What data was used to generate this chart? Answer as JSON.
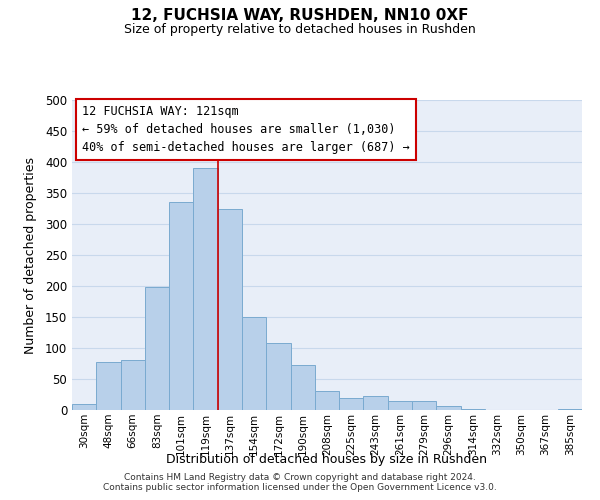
{
  "title": "12, FUCHSIA WAY, RUSHDEN, NN10 0XF",
  "subtitle": "Size of property relative to detached houses in Rushden",
  "xlabel": "Distribution of detached houses by size in Rushden",
  "ylabel": "Number of detached properties",
  "bar_labels": [
    "30sqm",
    "48sqm",
    "66sqm",
    "83sqm",
    "101sqm",
    "119sqm",
    "137sqm",
    "154sqm",
    "172sqm",
    "190sqm",
    "208sqm",
    "225sqm",
    "243sqm",
    "261sqm",
    "279sqm",
    "296sqm",
    "314sqm",
    "332sqm",
    "350sqm",
    "367sqm",
    "385sqm"
  ],
  "bar_heights": [
    10,
    78,
    80,
    198,
    335,
    390,
    325,
    150,
    108,
    73,
    30,
    20,
    22,
    15,
    15,
    6,
    2,
    0,
    0,
    0,
    1
  ],
  "bar_color": "#b8d0ea",
  "bar_edge_color": "#7aaad0",
  "vline_x": 5.5,
  "vline_color": "#cc0000",
  "ylim": [
    0,
    500
  ],
  "yticks": [
    0,
    50,
    100,
    150,
    200,
    250,
    300,
    350,
    400,
    450,
    500
  ],
  "annotation_title": "12 FUCHSIA WAY: 121sqm",
  "annotation_line1": "← 59% of detached houses are smaller (1,030)",
  "annotation_line2": "40% of semi-detached houses are larger (687) →",
  "annotation_box_color": "#ffffff",
  "annotation_box_edge": "#cc0000",
  "grid_color": "#c8d8ec",
  "bg_color": "#e8eef8",
  "footer1": "Contains HM Land Registry data © Crown copyright and database right 2024.",
  "footer2": "Contains public sector information licensed under the Open Government Licence v3.0."
}
